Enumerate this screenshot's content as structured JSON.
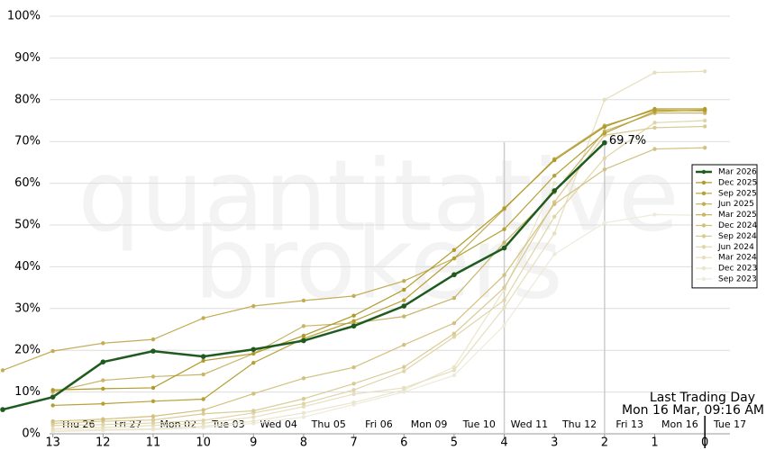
{
  "chart_data": {
    "type": "line",
    "watermark": [
      "quantitative",
      "brokers"
    ],
    "x": [
      14,
      13,
      12,
      11,
      10,
      9,
      8,
      7,
      6,
      5,
      4,
      3,
      2,
      1,
      0
    ],
    "xlim": [
      14,
      -0.5
    ],
    "xticks": [
      13,
      12,
      11,
      10,
      9,
      8,
      7,
      6,
      5,
      4,
      3,
      2,
      1,
      0
    ],
    "date_labels": [
      "Thu 26",
      "Fri 27",
      "Mon 02",
      "Tue 03",
      "Wed 04",
      "Thu 05",
      "Fri 06",
      "Mon 09",
      "Tue 10",
      "Wed 11",
      "Thu 12",
      "Fri 13",
      "Mon 16",
      "Tue 17"
    ],
    "ylim": [
      0,
      100
    ],
    "yticks": [
      {
        "value": 0,
        "label": "0%"
      },
      {
        "value": 10,
        "label": "10%"
      },
      {
        "value": 20,
        "label": "20%"
      },
      {
        "value": 30,
        "label": "30%"
      },
      {
        "value": 40,
        "label": "40%"
      },
      {
        "value": 50,
        "label": "50%"
      },
      {
        "value": 60,
        "label": "60%"
      },
      {
        "value": 70,
        "label": "70%"
      },
      {
        "value": 80,
        "label": "80%"
      },
      {
        "value": 90,
        "label": "90%"
      },
      {
        "value": 100,
        "label": "100%"
      }
    ],
    "grid": true,
    "legend": "right",
    "vlines": [
      4,
      2
    ],
    "last_trading_day": {
      "x": 0,
      "text": [
        "Last Trading Day",
        "Mon 16 Mar, 09:16 AM"
      ]
    },
    "series": [
      {
        "name": "Mar 2026",
        "color": "#1f5a1f",
        "values": [
          5.8,
          8.8,
          17.2,
          19.8,
          18.5,
          20.2,
          22.3,
          25.8,
          30.6,
          38.1,
          44.5,
          58.2,
          69.7,
          null,
          null
        ],
        "value_labels": [
          null,
          null,
          null,
          null,
          null,
          null,
          null,
          null,
          null,
          null,
          null,
          null,
          "69.7%",
          null,
          null
        ]
      },
      {
        "name": "Dec 2025",
        "color": "#b09a2a",
        "values": [
          null,
          10.5,
          10.8,
          11,
          17.5,
          19.2,
          23.5,
          28.3,
          34.5,
          44,
          54,
          65.5,
          73.5,
          77.8,
          77.8
        ]
      },
      {
        "name": "Sep 2025",
        "color": "#b5a035",
        "values": [
          null,
          6.8,
          7.2,
          7.8,
          8.3,
          17,
          22.8,
          27,
          32,
          42,
          49,
          61.8,
          72,
          77.2,
          77.5
        ]
      },
      {
        "name": "Jun 2025",
        "color": "#c2ad55",
        "values": [
          15.2,
          19.8,
          21.7,
          22.6,
          27.7,
          30.6,
          31.9,
          33,
          36.6,
          42,
          53.8,
          65.8,
          73.8,
          77.5,
          77.3
        ]
      },
      {
        "name": "Mar 2025",
        "color": "#c9b56a",
        "values": [
          null,
          10,
          12.8,
          13.7,
          14.2,
          19.2,
          25.8,
          26.5,
          28.1,
          32.5,
          45.8,
          57.8,
          72.5,
          76.8,
          76.8
        ]
      },
      {
        "name": "Dec 2024",
        "color": "#d2c07f",
        "values": [
          null,
          3,
          3.5,
          4.2,
          5.7,
          9.6,
          13.3,
          15.9,
          21.3,
          26.5,
          38,
          55,
          63.3,
          68.2,
          68.5
        ]
      },
      {
        "name": "Sep 2024",
        "color": "#d9cb95",
        "values": [
          null,
          2.5,
          3,
          3.3,
          4.8,
          5.5,
          8.4,
          12,
          16,
          24,
          35,
          55.5,
          71.5,
          73.3,
          73.6
        ]
      },
      {
        "name": "Jun 2024",
        "color": "#e0d5a8",
        "values": [
          null,
          2,
          2.2,
          2.6,
          3.2,
          5,
          7.2,
          10.5,
          15,
          23.2,
          32,
          52,
          66,
          74.5,
          75
        ]
      },
      {
        "name": "Mar 2024",
        "color": "#e6dfbd",
        "values": [
          null,
          1.2,
          1.5,
          2,
          2.5,
          4,
          6.5,
          9.5,
          11,
          15.2,
          30.2,
          48,
          80,
          86.5,
          86.8
        ]
      },
      {
        "name": "Dec 2023",
        "color": "#ebe5cc",
        "values": [
          null,
          0.8,
          1,
          1.2,
          1.8,
          3,
          5,
          7.5,
          10.5,
          16,
          34.5,
          60,
          null,
          null,
          null
        ]
      },
      {
        "name": "Sep 2023",
        "color": "#eeeadb",
        "values": [
          null,
          0.5,
          0.8,
          1,
          1.5,
          2.5,
          4,
          7,
          10,
          14,
          26,
          43,
          50.5,
          52.5,
          52.3
        ]
      }
    ]
  }
}
